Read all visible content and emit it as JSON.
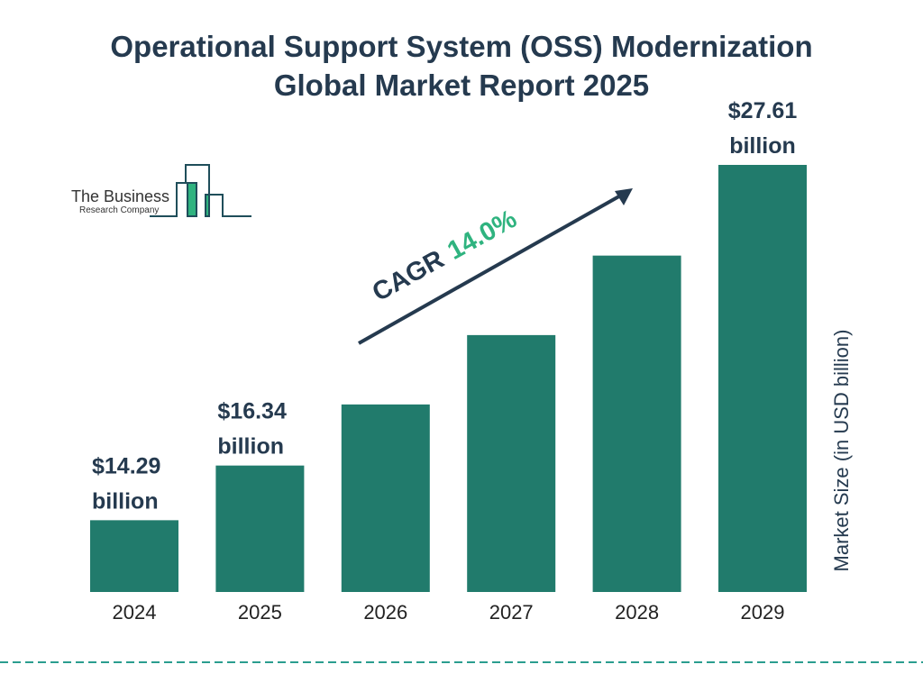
{
  "title_line1": "Operational Support System (OSS) Modernization",
  "title_line2": "Global Market Report 2025",
  "logo": {
    "line1": "The Business",
    "line2": "Research Company"
  },
  "cagr": {
    "label": "CAGR",
    "value": "14.0%",
    "color": "#2fb37f"
  },
  "colors": {
    "bar": "#217b6c",
    "text": "#253a4f",
    "dash": "#2a9d8f"
  },
  "chart_data": {
    "type": "bar",
    "categories": [
      "2024",
      "2025",
      "2026",
      "2027",
      "2028",
      "2029"
    ],
    "values": [
      14.29,
      16.34,
      18.63,
      21.23,
      24.21,
      27.61
    ],
    "data_labels": [
      [
        "$14.29",
        "billion"
      ],
      [
        "$16.34",
        "billion"
      ],
      null,
      null,
      null,
      [
        "$27.61",
        "billion"
      ]
    ],
    "ylabel": "Market Size (in USD billion)",
    "grid": false
  }
}
